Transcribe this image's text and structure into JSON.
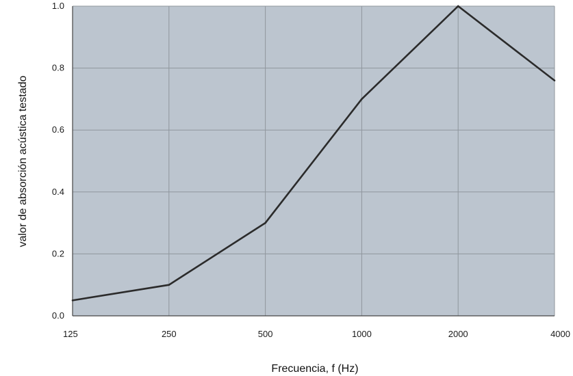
{
  "chart_data": {
    "type": "line",
    "title": "",
    "xlabel": "Frecuencia, f (Hz)",
    "ylabel": "valor de absorción acústica testado",
    "categories": [
      "125",
      "250",
      "500",
      "1000",
      "2000",
      "4000"
    ],
    "series": [
      {
        "values": [
          0.05,
          0.1,
          0.3,
          0.7,
          1.0,
          0.76
        ]
      }
    ],
    "ylim": [
      0,
      1.0
    ],
    "yticks": [
      "0.0",
      "0.2",
      "0.4",
      "0.6",
      "0.8",
      "1.0"
    ],
    "grid": true,
    "colors": {
      "plot_background": "#bcc5cf",
      "grid": "#8f969d",
      "line": "#2b2b2b"
    }
  }
}
